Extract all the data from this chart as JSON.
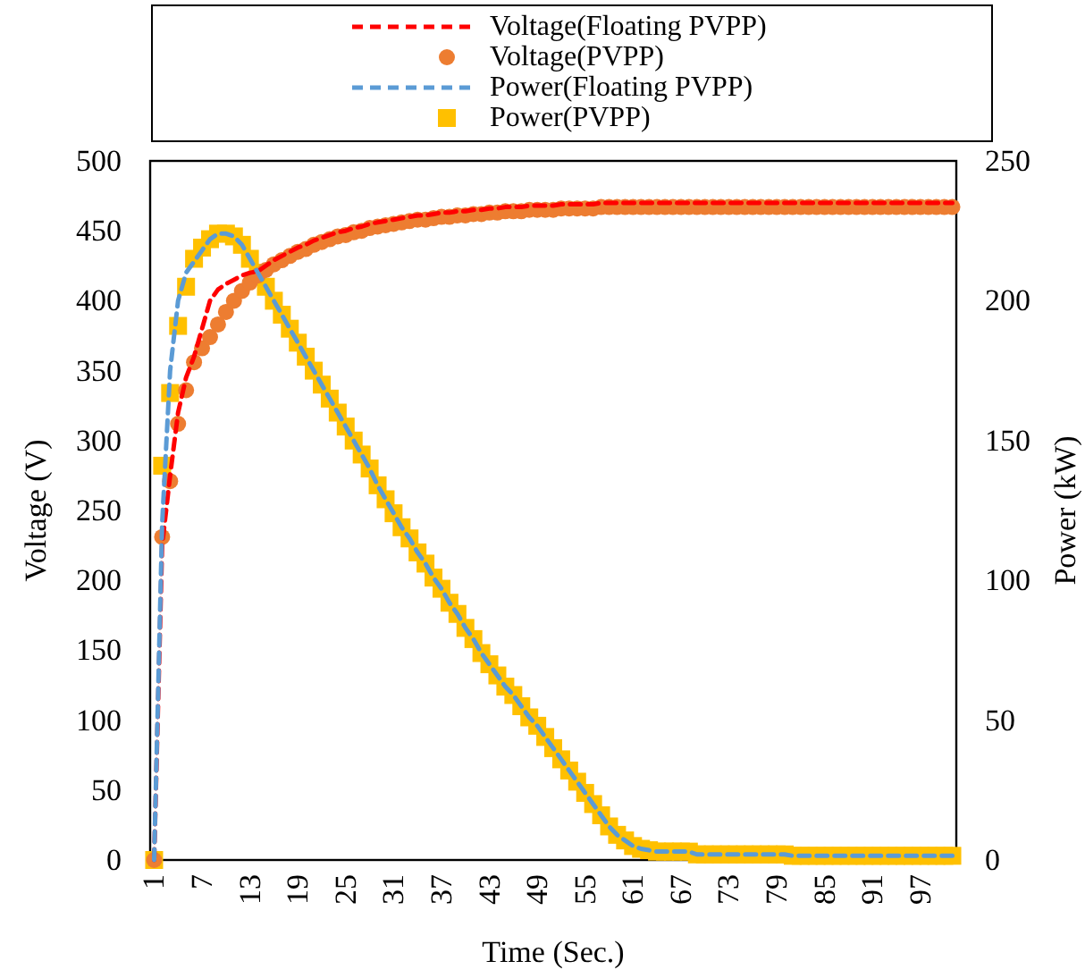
{
  "chart_data": {
    "type": "line",
    "xlabel": "Time (Sec.)",
    "ylabel": "Voltage (V)",
    "y2label": "Power (kW)",
    "x": [
      1,
      2,
      3,
      4,
      5,
      6,
      7,
      8,
      9,
      10,
      11,
      12,
      13,
      14,
      15,
      16,
      17,
      18,
      19,
      20,
      21,
      22,
      23,
      24,
      25,
      26,
      27,
      28,
      29,
      30,
      31,
      32,
      33,
      34,
      35,
      36,
      37,
      38,
      39,
      40,
      41,
      42,
      43,
      44,
      45,
      46,
      47,
      48,
      49,
      50,
      51,
      52,
      53,
      54,
      55,
      56,
      57,
      58,
      59,
      60,
      61,
      62,
      63,
      64,
      65,
      66,
      67,
      68,
      69,
      70,
      71,
      72,
      73,
      74,
      75,
      76,
      77,
      78,
      79,
      80,
      81,
      82,
      83,
      84,
      85,
      86,
      87,
      88,
      89,
      90,
      91,
      92,
      93,
      94,
      95,
      96,
      97,
      98,
      99,
      100,
      101
    ],
    "xlim": [
      0.5,
      101.5
    ],
    "xticks": [
      1,
      7,
      13,
      19,
      25,
      31,
      37,
      43,
      49,
      55,
      61,
      67,
      73,
      79,
      85,
      91,
      97
    ],
    "ylim": [
      0,
      500
    ],
    "yticks": [
      0,
      50,
      100,
      150,
      200,
      250,
      300,
      350,
      400,
      450,
      500
    ],
    "y2lim": [
      0,
      250
    ],
    "y2ticks": [
      0,
      50,
      100,
      150,
      200,
      250
    ],
    "grid": false,
    "legend": "top",
    "series": [
      {
        "name": "Voltage(Floating PVPP)",
        "line_style": "dashed",
        "marker": "none",
        "color": "#ff0000",
        "values": [
          0,
          225,
          275,
          320,
          345,
          360,
          380,
          400,
          408,
          412,
          415,
          418,
          420,
          421,
          425,
          429,
          432,
          435,
          438,
          440,
          443,
          445,
          447,
          449,
          450,
          452,
          453,
          455,
          456,
          457,
          458,
          459,
          460,
          461,
          461,
          462,
          463,
          463,
          464,
          464,
          465,
          465,
          466,
          466,
          467,
          467,
          467,
          468,
          468,
          468,
          468,
          469,
          469,
          469,
          469,
          469,
          470,
          470,
          470,
          470,
          470,
          470,
          470,
          470,
          470,
          470,
          470,
          470,
          470,
          470,
          470,
          470,
          470,
          470,
          470,
          470,
          470,
          470,
          470,
          470,
          470,
          470,
          470,
          470,
          470,
          470,
          470,
          470,
          470,
          470,
          470,
          470,
          470,
          470,
          470,
          470,
          470,
          470,
          470,
          470,
          470
        ]
      },
      {
        "name": "Voltage(PVPP)",
        "type": "scatter",
        "marker": "circle",
        "color": "#ed7d31",
        "values": [
          0,
          231,
          271,
          312,
          336,
          356,
          366,
          374,
          383,
          392,
          400,
          407,
          413,
          418,
          422,
          426,
          429,
          432,
          435,
          437,
          440,
          442,
          444,
          446,
          447,
          449,
          450,
          452,
          453,
          454,
          455,
          456,
          457,
          458,
          458,
          459,
          460,
          460,
          461,
          461,
          462,
          462,
          463,
          463,
          464,
          464,
          464,
          465,
          465,
          465,
          465,
          466,
          466,
          466,
          466,
          466,
          467,
          467,
          467,
          467,
          467,
          467,
          467,
          467,
          467,
          467,
          467,
          467,
          467,
          467,
          467,
          467,
          467,
          467,
          467,
          467,
          467,
          467,
          467,
          467,
          467,
          467,
          467,
          467,
          467,
          467,
          467,
          467,
          467,
          467,
          467,
          467,
          467,
          467,
          467,
          467,
          467,
          467,
          467,
          467,
          467
        ]
      },
      {
        "name": "Power(Floating PVPP)",
        "axis": "y2",
        "line_style": "dashed",
        "marker": "none",
        "color": "#5b9bd5",
        "values": [
          0,
          120,
          175,
          200,
          210,
          214,
          218,
          222,
          224,
          224,
          223,
          220,
          215,
          210,
          205,
          200,
          195,
          190,
          185,
          180,
          175,
          170,
          165,
          160,
          155,
          150,
          145,
          140,
          134,
          129,
          124,
          119,
          115,
          110,
          106,
          101,
          97,
          92,
          88,
          83,
          79,
          74,
          70,
          66,
          62,
          59,
          55,
          51,
          48,
          44,
          40,
          36,
          32,
          28,
          24,
          20,
          16,
          12,
          9,
          7,
          5,
          4,
          3.5,
          3,
          3,
          3,
          3,
          3,
          2,
          2,
          2,
          2,
          2,
          2,
          2,
          2,
          2,
          2,
          2,
          2,
          1.5,
          1.5,
          1.5,
          1.5,
          1.5,
          1.5,
          1.5,
          1.5,
          1.5,
          1.5,
          1.5,
          1.5,
          1.5,
          1.5,
          1.5,
          1.5,
          1.5,
          1.5,
          1.5,
          1.5,
          1.5
        ]
      },
      {
        "name": "Power(PVPP)",
        "type": "scatter",
        "axis": "y2",
        "marker": "square",
        "color": "#ffc000",
        "values": [
          0,
          141,
          167,
          191,
          205,
          215,
          219,
          222,
          224,
          224,
          223,
          220,
          215,
          210,
          205,
          200,
          195,
          190,
          185,
          180,
          175,
          170,
          165,
          160,
          155,
          150,
          145,
          140,
          134,
          129,
          124,
          119,
          115,
          110,
          106,
          101,
          97,
          92,
          88,
          83,
          79,
          74,
          70,
          66,
          62,
          59,
          55,
          51,
          48,
          44,
          40,
          36,
          32,
          28,
          24,
          20,
          16,
          12,
          9,
          7,
          5,
          4,
          3.5,
          3,
          3,
          3,
          3,
          3,
          2,
          2,
          2,
          2,
          2,
          2,
          2,
          2,
          2,
          2,
          2,
          2,
          1.5,
          1.5,
          1.5,
          1.5,
          1.5,
          1.5,
          1.5,
          1.5,
          1.5,
          1.5,
          1.5,
          1.5,
          1.5,
          1.5,
          1.5,
          1.5,
          1.5,
          1.5,
          1.5,
          1.5,
          1.5
        ]
      }
    ]
  }
}
